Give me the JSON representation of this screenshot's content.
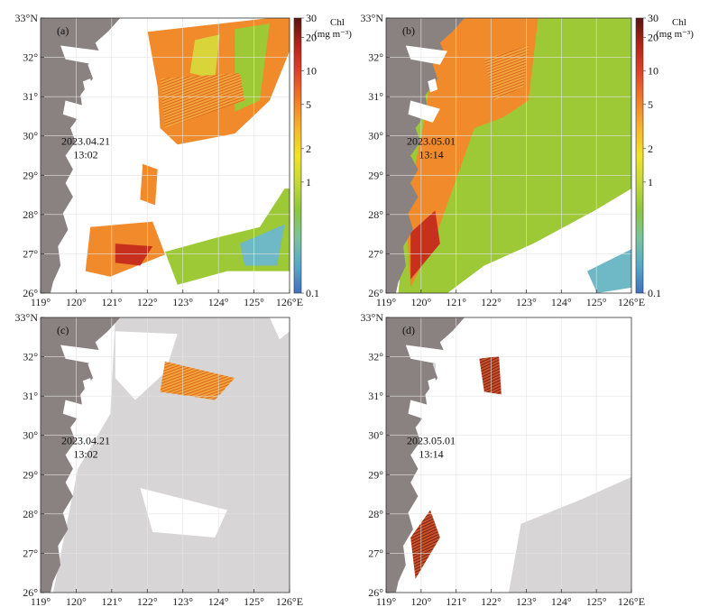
{
  "colors": {
    "land": "#8a8280",
    "cloud": "#d7d5d6",
    "ocean_bg": "#ffffff",
    "grid": "#e3e3e3",
    "frame": "#333333",
    "chl_high": "#c8301e",
    "chl_mid": "#f08a2a",
    "chl_low": "#9cc935",
    "chl_vlow": "#6fb8c6"
  },
  "axes": {
    "lon_ticks": [
      "119°",
      "120°",
      "121°",
      "122°",
      "123°",
      "124°",
      "125°",
      "126°E"
    ],
    "lat_ticks": [
      "26°",
      "27°",
      "28°",
      "29°",
      "30°",
      "31°",
      "32°",
      "33°N"
    ],
    "lon_range": [
      119,
      126
    ],
    "lat_range": [
      26,
      33
    ]
  },
  "colorbar": {
    "title_line1": "Chl",
    "title_line2": "(mg m⁻³)",
    "scale": "log",
    "range": [
      0.1,
      30
    ],
    "ticks": [
      {
        "value": 30,
        "label": "30"
      },
      {
        "value": 20,
        "label": "20"
      },
      {
        "value": 10,
        "label": "10"
      },
      {
        "value": 5,
        "label": "5"
      },
      {
        "value": 2,
        "label": "2"
      },
      {
        "value": 1,
        "label": "1"
      },
      {
        "value": 0.1,
        "label": "0.1"
      }
    ],
    "colormap": [
      "#3f6fbf",
      "#56a9c9",
      "#79c39c",
      "#8dc63f",
      "#c4d838",
      "#f2e229",
      "#f6b42c",
      "#ef7e2a",
      "#e0452a",
      "#b52419",
      "#5a1410"
    ]
  },
  "panels": [
    {
      "id": "a",
      "label": "(a)",
      "date": "2023.04.21",
      "time": "13:02",
      "type": "chl",
      "show_colorbar": true
    },
    {
      "id": "b",
      "label": "(b)",
      "date": "2023.05.01",
      "time": "13:14",
      "type": "chl",
      "show_colorbar": true
    },
    {
      "id": "c",
      "label": "(c)",
      "date": "2023.04.21",
      "time": "13:02",
      "type": "bloom",
      "show_colorbar": false
    },
    {
      "id": "d",
      "label": "(d)",
      "date": "2023.05.01",
      "time": "13:14",
      "type": "bloom",
      "show_colorbar": false
    }
  ]
}
